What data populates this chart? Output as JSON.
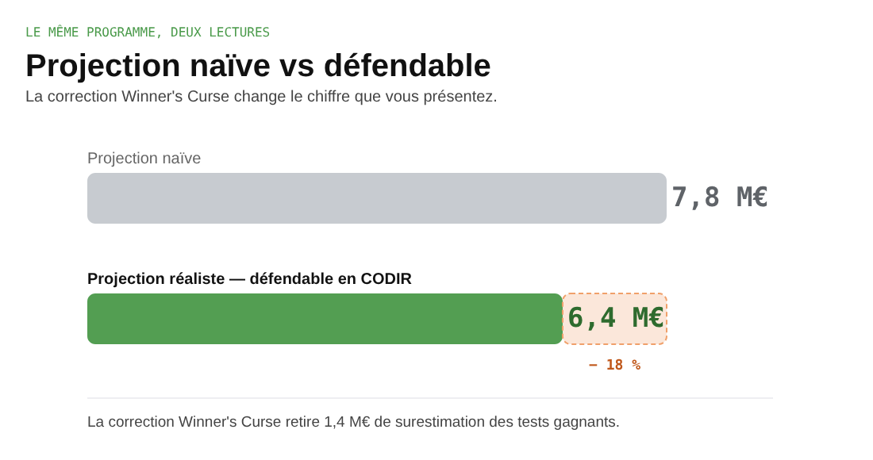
{
  "chart_data": {
    "type": "bar",
    "orientation": "horizontal",
    "stacked": true,
    "title": "Projection naïve vs défendable",
    "subtitle": "La correction Winner's Curse change le chiffre que vous présentez.",
    "annotations": [
      "LE MÊME PROGRAMME, DEUX LECTURES",
      "La correction Winner's Curse retire 1,4 M€ de surestimation des tests gagnants.",
      "− 18 %"
    ],
    "categories": [
      "Projection naïve",
      "Projection réaliste — défendable en CODIR"
    ],
    "series": [
      {
        "colors": [
          "#c7cbd0",
          "#539e52"
        ],
        "values": [
          7.8,
          6.4
        ],
        "value_labels": [
          "7,8 M€",
          "6,4 M€"
        ]
      },
      {
        "color": "#f0a06a",
        "values": [
          null,
          1.4
        ]
      }
    ],
    "grid": false,
    "tick_labels": false
  }
}
